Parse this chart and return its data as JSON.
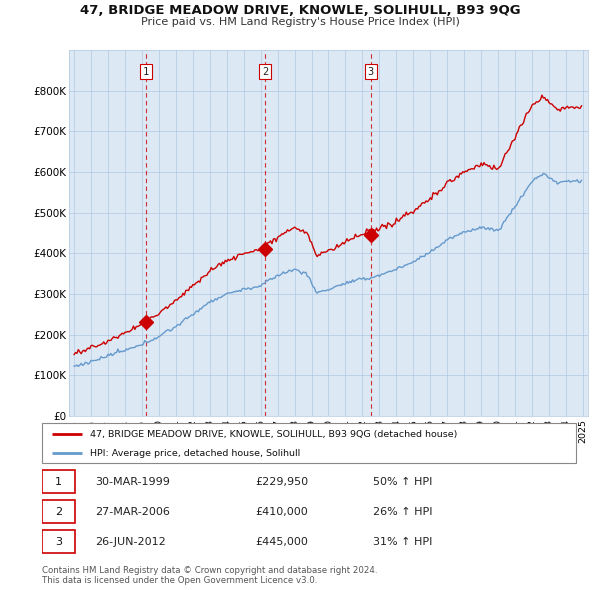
{
  "title": "47, BRIDGE MEADOW DRIVE, KNOWLE, SOLIHULL, B93 9QG",
  "subtitle": "Price paid vs. HM Land Registry's House Price Index (HPI)",
  "ylim": [
    0,
    900000
  ],
  "yticks": [
    0,
    100000,
    200000,
    300000,
    400000,
    500000,
    600000,
    700000,
    800000
  ],
  "ytick_labels": [
    "£0",
    "£100K",
    "£200K",
    "£300K",
    "£400K",
    "£500K",
    "£600K",
    "£700K",
    "£800K"
  ],
  "sale_color": "#cc0000",
  "hpi_color": "#6699cc",
  "plot_bg_color": "#dce9f5",
  "transaction_years": [
    1999.25,
    2006.25,
    2012.5
  ],
  "transaction_prices": [
    229950,
    410000,
    445000
  ],
  "transaction_labels": [
    "1",
    "2",
    "3"
  ],
  "legend_sale_label": "47, BRIDGE MEADOW DRIVE, KNOWLE, SOLIHULL, B93 9QG (detached house)",
  "legend_hpi_label": "HPI: Average price, detached house, Solihull",
  "table_rows": [
    [
      "1",
      "30-MAR-1999",
      "£229,950",
      "50% ↑ HPI"
    ],
    [
      "2",
      "27-MAR-2006",
      "£410,000",
      "26% ↑ HPI"
    ],
    [
      "3",
      "26-JUN-2012",
      "£445,000",
      "31% ↑ HPI"
    ]
  ],
  "footnote": "Contains HM Land Registry data © Crown copyright and database right 2024.\nThis data is licensed under the Open Government Licence v3.0.",
  "background_color": "#ffffff",
  "grid_color": "#b0c8e0"
}
